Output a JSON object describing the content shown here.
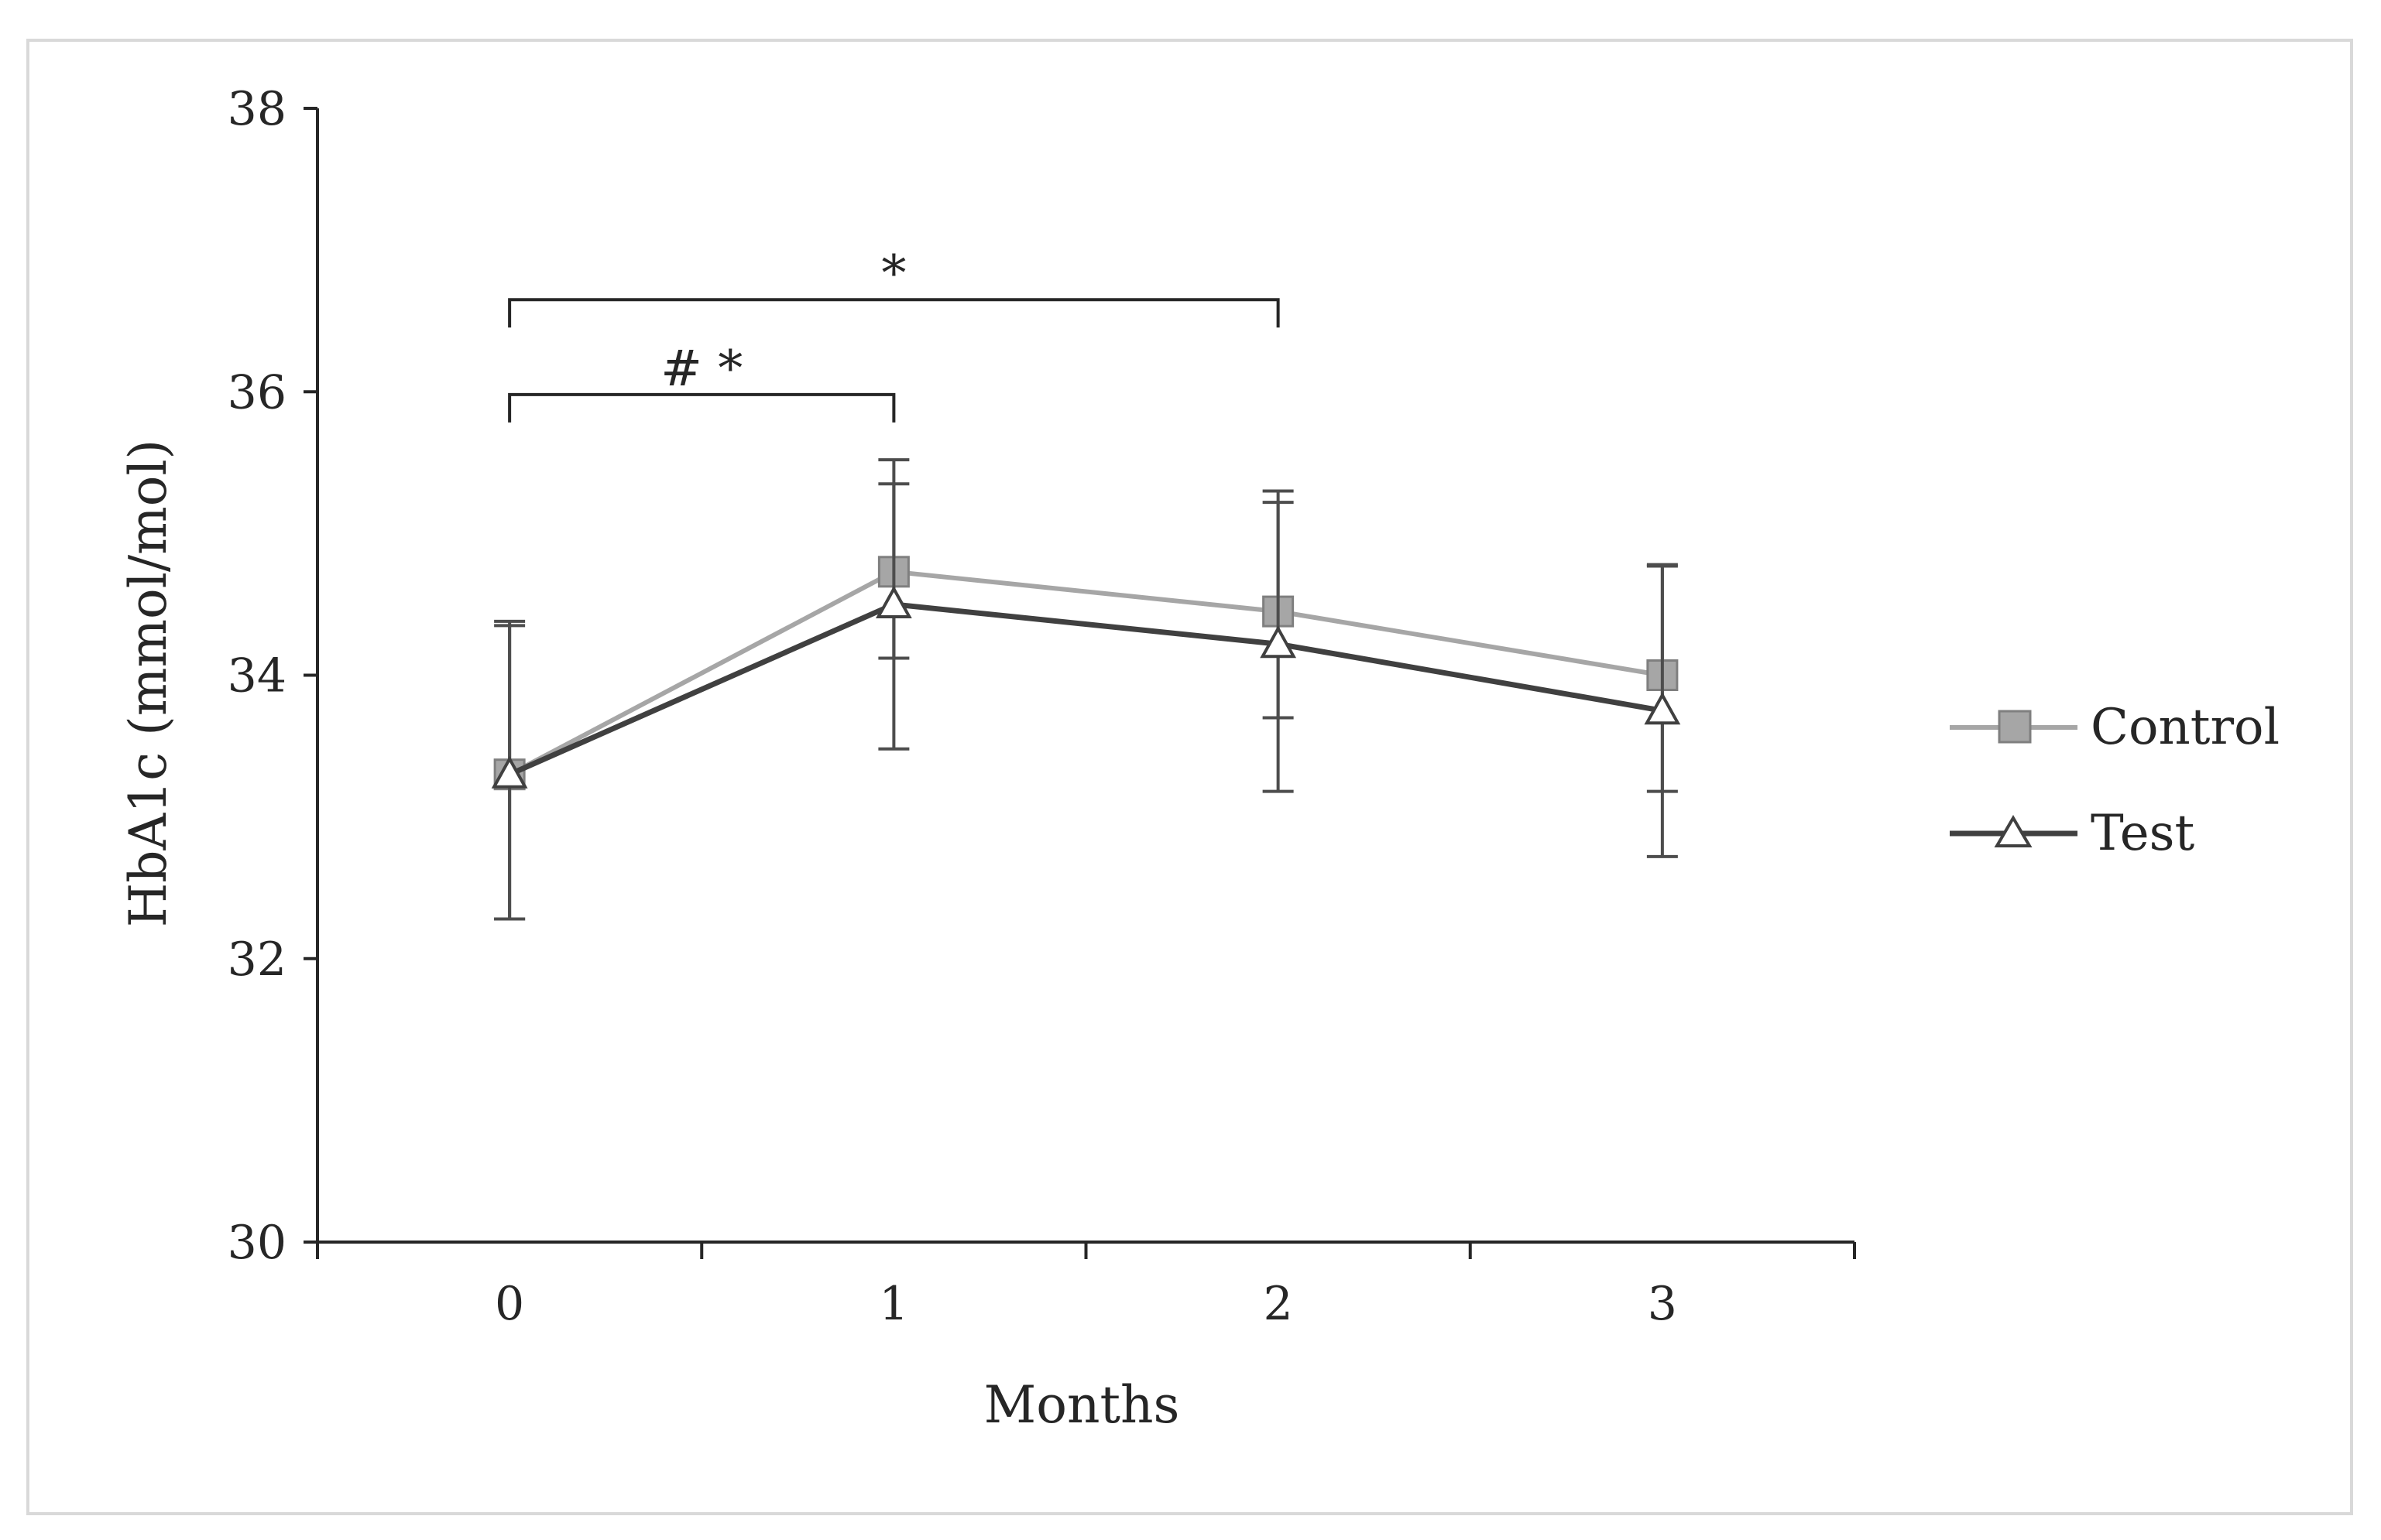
{
  "chart_data": {
    "type": "line",
    "title": "",
    "xlabel": "Months",
    "ylabel": "HbA1c (mmol/mol)",
    "x": [
      0,
      1,
      2,
      3
    ],
    "x_tick_labels": [
      "0",
      "1",
      "2",
      "3"
    ],
    "ylim": [
      30,
      38
    ],
    "y_ticks": [
      30,
      32,
      34,
      36,
      38
    ],
    "y_tick_labels": [
      "30",
      "32",
      "34",
      "36",
      "38"
    ],
    "legend_position": "right",
    "series": [
      {
        "name": "Control",
        "marker": "square",
        "color": "#a6a6a6",
        "marker_fill": "#a6a6a6",
        "values": [
          33.3,
          34.73,
          34.45,
          34.0
        ],
        "error_upper": [
          34.35,
          35.52,
          35.3,
          34.78
        ],
        "error_lower": [
          32.28,
          34.12,
          33.7,
          33.18
        ]
      },
      {
        "name": "Test",
        "marker": "triangle",
        "color": "#404040",
        "marker_fill": "#ffffff",
        "values": [
          33.3,
          34.5,
          34.22,
          33.75
        ],
        "error_upper": [
          34.38,
          35.35,
          35.22,
          34.77
        ],
        "error_lower": [
          32.28,
          33.48,
          33.18,
          32.72
        ]
      }
    ],
    "annotations": [
      {
        "text": "*",
        "from_x": 0,
        "to_x": 2,
        "bracket_y": 36.65
      },
      {
        "text": "# *",
        "from_x": 0,
        "to_x": 1,
        "bracket_y": 35.98
      }
    ]
  }
}
